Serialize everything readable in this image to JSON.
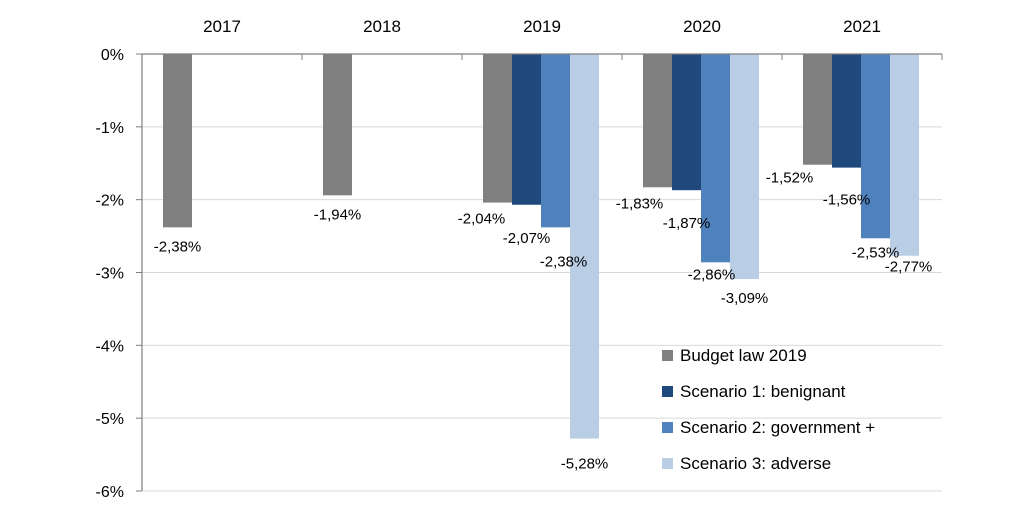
{
  "chart_data": {
    "type": "bar",
    "categories": [
      "2017",
      "2018",
      "2019",
      "2020",
      "2021"
    ],
    "ylim": [
      -6,
      0
    ],
    "yticks": [
      0,
      -1,
      -2,
      -3,
      -4,
      -5,
      -6
    ],
    "ytick_labels": [
      "0%",
      "-1%",
      "-2%",
      "-3%",
      "-4%",
      "-5%",
      "-6%"
    ],
    "grid": true,
    "legend_position": "bottom-right",
    "series": [
      {
        "name": "Budget law 2019",
        "color": "#808080",
        "values": [
          -2.38,
          -1.94,
          -2.04,
          -1.83,
          -1.52
        ],
        "labels": [
          "-2,38%",
          "-1,94%",
          "-2,04%",
          "-1,83%",
          "-1,52%"
        ]
      },
      {
        "name": "Scenario 1: benignant",
        "color": "#1F497D",
        "values": [
          null,
          null,
          -2.07,
          -1.87,
          -1.56
        ],
        "labels": [
          "",
          "",
          "-2,07%",
          "-1,87%",
          "-1,56%"
        ]
      },
      {
        "name": "Scenario 2: government +",
        "color": "#4F81BD",
        "values": [
          null,
          null,
          -2.38,
          -2.86,
          -2.53
        ],
        "labels": [
          "",
          "",
          "-2,38%",
          "-2,86%",
          "-2,53%"
        ]
      },
      {
        "name": "Scenario 3: adverse",
        "color": "#B9CDE5",
        "values": [
          null,
          null,
          -5.28,
          -3.09,
          -2.77
        ],
        "labels": [
          "",
          "",
          "-5,28%",
          "-3,09%",
          "-2,77%"
        ]
      }
    ]
  }
}
